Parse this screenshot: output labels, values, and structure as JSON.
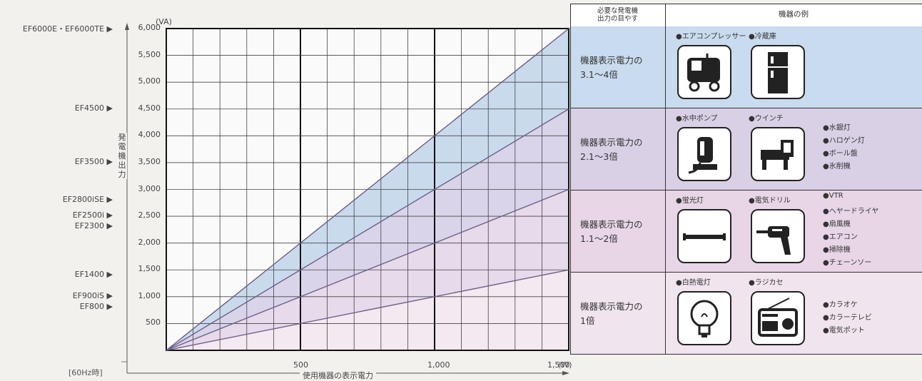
{
  "chart_data": {
    "type": "area",
    "x_unit": "(W)",
    "y_unit": "(VA)",
    "xlabel": "使用機器の表示電力",
    "ylabel": "発電機出力",
    "xlim": [
      0,
      1500
    ],
    "ylim": [
      0,
      6000
    ],
    "x_ticks": [
      "500",
      "1,000",
      "1,500"
    ],
    "y_ticks": [
      "500",
      "1,000",
      "1,500",
      "2,000",
      "2,500",
      "3,000",
      "3,500",
      "4,000",
      "4,500",
      "5,000",
      "5,500",
      "6,000"
    ],
    "lines": [
      {
        "multiplier": 1,
        "x": [
          0,
          1500
        ],
        "y": [
          0,
          1500
        ]
      },
      {
        "multiplier": 2,
        "x": [
          0,
          1500
        ],
        "y": [
          0,
          3000
        ]
      },
      {
        "multiplier": 3,
        "x": [
          0,
          1500
        ],
        "y": [
          0,
          4500
        ]
      },
      {
        "multiplier": 4,
        "x": [
          0,
          1500
        ],
        "y": [
          0,
          6000
        ]
      }
    ],
    "band_colors": [
      "#f3e8f0",
      "#e6d8ea",
      "#d8d2ea",
      "#c6d8ec"
    ],
    "footnote": "[60Hz時]"
  },
  "models": [
    {
      "label": "EF6000E・EF6000TE ▶",
      "value": 6000
    },
    {
      "label": "EF4500 ▶",
      "value": 4500
    },
    {
      "label": "EF3500 ▶",
      "value": 3500
    },
    {
      "label": "EF2800iSE ▶",
      "value": 2800
    },
    {
      "label": "EF2500i ▶",
      "value": 2500
    },
    {
      "label": "EF2300 ▶",
      "value": 2300
    },
    {
      "label": "EF1400 ▶",
      "value": 1400
    },
    {
      "label": "EF900iS ▶",
      "value": 1000
    },
    {
      "label": "EF800 ▶",
      "value": 800
    }
  ],
  "table": {
    "header_left": [
      "必要な発電機",
      "出力の目やす"
    ],
    "header_right": "機器の例",
    "rows": [
      {
        "label": [
          "機器表示電力の",
          "3.1〜4倍"
        ],
        "bg": "#c9dbee",
        "devices": [
          "●エアコンプレッサー",
          "●冷蔵庫"
        ],
        "icons": [
          "compressor-icon",
          "refrigerator-icon"
        ],
        "others": []
      },
      {
        "label": [
          "機器表示電力の",
          "2.1〜3倍"
        ],
        "bg": "#d9d0e6",
        "devices": [
          "●水中ポンプ",
          "●ウインチ"
        ],
        "icons": [
          "pump-icon",
          "winch-icon"
        ],
        "others": [
          "●水銀灯",
          "●ハロゲン灯",
          "●ボール盤",
          "●氷削機"
        ]
      },
      {
        "label": [
          "機器表示電力の",
          "1.1〜2倍"
        ],
        "bg": "#e8d6e6",
        "devices": [
          "●蛍光灯",
          "●電気ドリル"
        ],
        "icons": [
          "fluorescent-lamp-icon",
          "drill-icon"
        ],
        "others": [
          "●VTR",
          "●ヘヤードライヤ",
          "●扇風機",
          "●エアコン",
          "●掃除機",
          "●チェーンソー"
        ]
      },
      {
        "label": [
          "機器表示電力の",
          "1倍"
        ],
        "bg": "#f0e4ee",
        "devices": [
          "●白熱電灯",
          "●ラジカセ"
        ],
        "icons": [
          "light-bulb-icon",
          "radio-icon"
        ],
        "others": [
          "●カラオケ",
          "●カラーテレビ",
          "●電気ポット"
        ]
      }
    ]
  }
}
